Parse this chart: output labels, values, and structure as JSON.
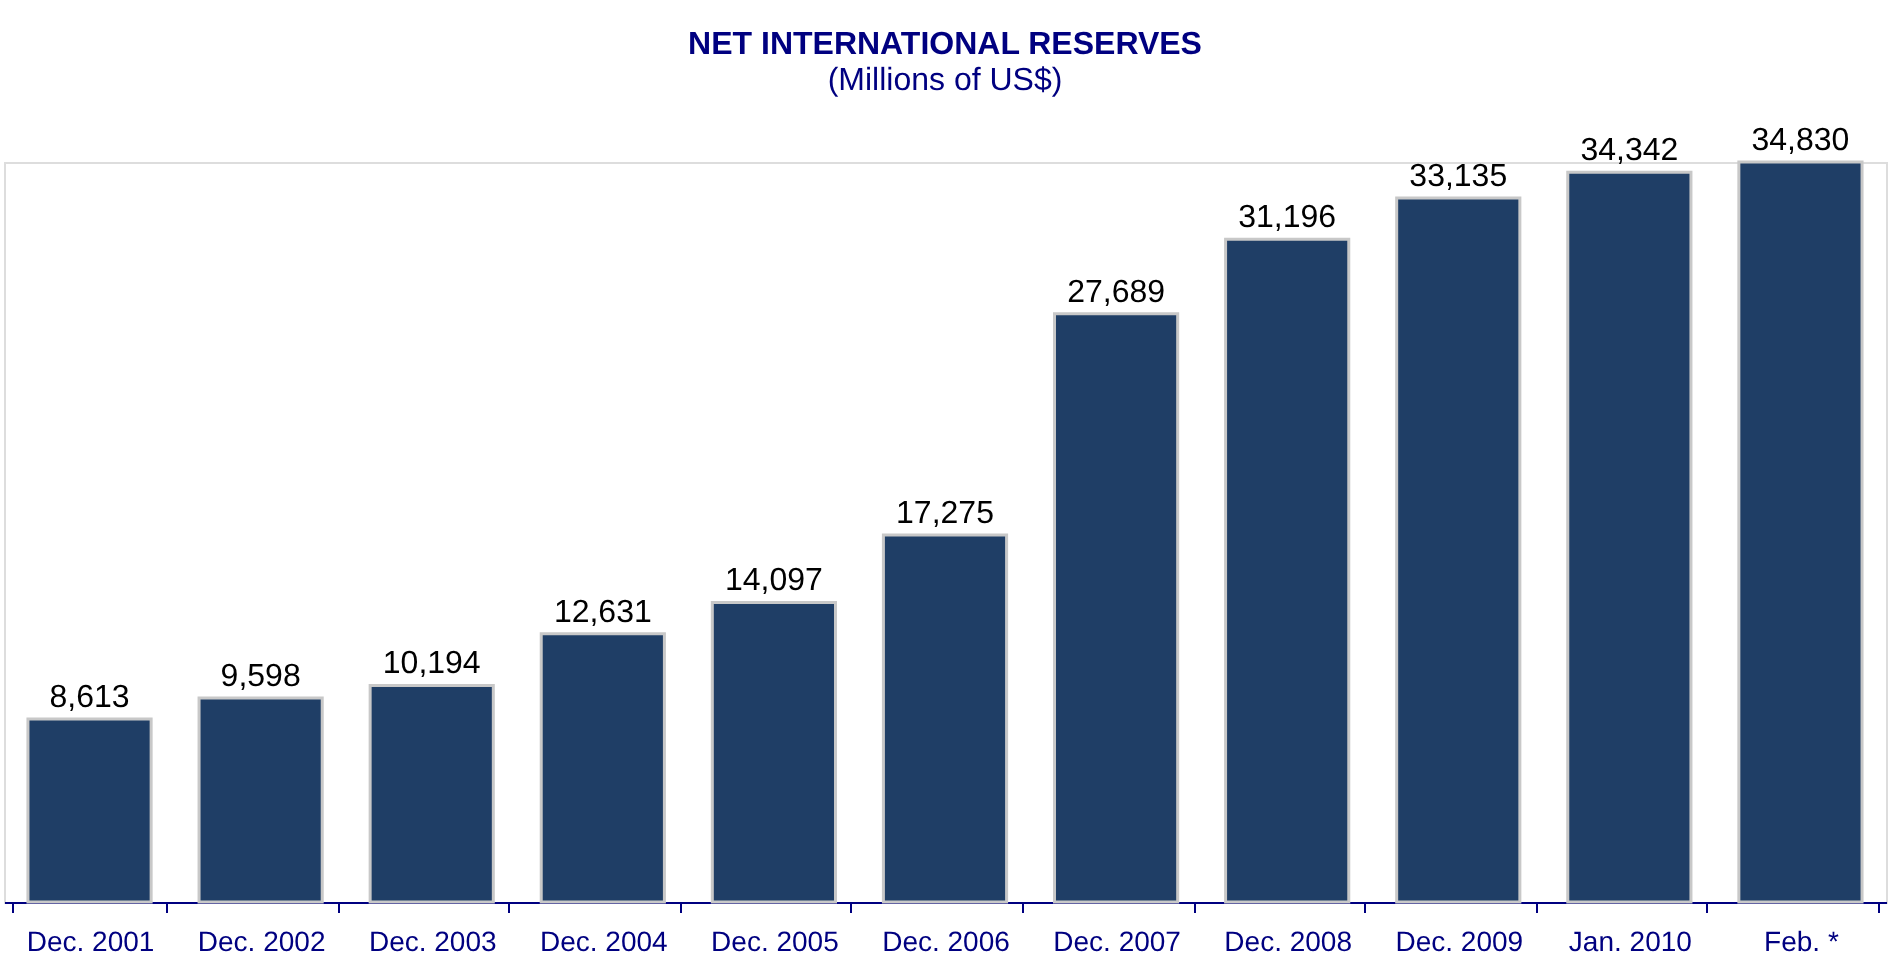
{
  "chart_data": {
    "type": "bar",
    "title": "NET INTERNATIONAL RESERVES",
    "subtitle": "(Millions of US$)",
    "categories": [
      "Dec. 2001",
      "Dec. 2002",
      "Dec. 2003",
      "Dec. 2004",
      "Dec. 2005",
      "Dec. 2006",
      "Dec. 2007",
      "Dec. 2008",
      "Dec. 2009",
      "Jan. 2010",
      "Feb. *"
    ],
    "values": [
      8613,
      9598,
      10194,
      12631,
      14097,
      17275,
      27689,
      31196,
      33135,
      34342,
      34830
    ],
    "value_labels": [
      "8,613",
      "9,598",
      "10,194",
      "12,631",
      "14,097",
      "17,275",
      "27,689",
      "31,196",
      "33,135",
      "34,342",
      "34,830"
    ],
    "color": "#1f3e66"
  }
}
